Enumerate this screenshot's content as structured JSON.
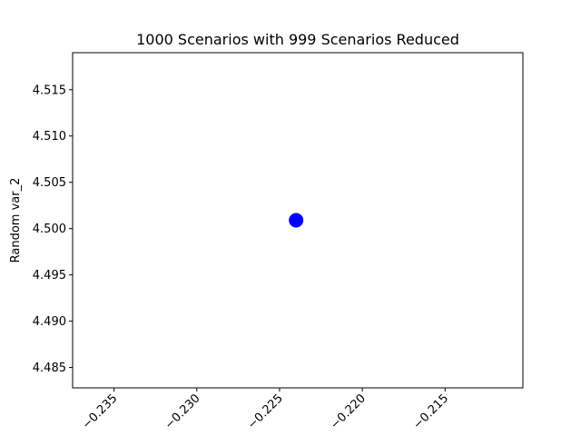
{
  "chart_data": {
    "type": "scatter",
    "title": "1000 Scenarios with 999 Scenarios Reduced",
    "xlabel": "",
    "ylabel": "Random var_2",
    "xlim": [
      -0.2375,
      -0.2103
    ],
    "ylim": [
      4.4828,
      4.519
    ],
    "xticks": [
      -0.235,
      -0.23,
      -0.225,
      -0.22,
      -0.215
    ],
    "xtick_labels": [
      "−0.235",
      "−0.230",
      "−0.225",
      "−0.220",
      "−0.215"
    ],
    "yticks": [
      4.485,
      4.49,
      4.495,
      4.5,
      4.505,
      4.51,
      4.515
    ],
    "ytick_labels": [
      "4.485",
      "4.490",
      "4.495",
      "4.500",
      "4.505",
      "4.510",
      "4.515"
    ],
    "points": [
      {
        "x": -0.224,
        "y": 4.5009
      }
    ],
    "marker_color": "#0000ff",
    "grid": false
  }
}
